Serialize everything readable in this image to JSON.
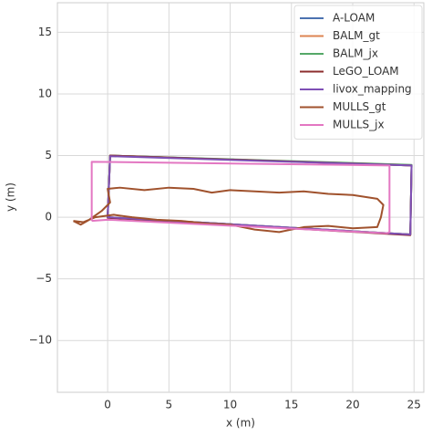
{
  "chart_data": {
    "type": "line",
    "xlabel": "x (m)",
    "ylabel": "y (m)",
    "xlim": [
      -4.1,
      25.8
    ],
    "ylim": [
      -14.2,
      17.4
    ],
    "xticks": [
      0,
      5,
      10,
      15,
      20,
      25
    ],
    "yticks": [
      {
        "value": -10,
        "label": "−10"
      },
      {
        "value": -5,
        "label": "−5"
      },
      0,
      5,
      10,
      15
    ],
    "grid": true,
    "legend": "upper right",
    "series": [
      {
        "name": "A-LOAM",
        "color": "#4c72b0",
        "x": [
          0,
          0.2,
          24.8,
          24.7,
          0,
          0.2
        ],
        "values": [
          0,
          5,
          4.2,
          -1.4,
          0,
          0.1
        ]
      },
      {
        "name": "BALM_gt",
        "color": "#dd8452",
        "x": [
          0,
          0.2,
          24.8,
          24.7,
          0,
          0.2
        ],
        "values": [
          0,
          5,
          4.2,
          -1.4,
          0,
          0.1
        ]
      },
      {
        "name": "BALM_jx",
        "color": "#55a868",
        "x": [
          0,
          0.2,
          24.8,
          24.7,
          0,
          0.2
        ],
        "values": [
          0.05,
          5,
          4.25,
          -1.4,
          0,
          0.1
        ]
      },
      {
        "name": "LeGO_LOAM",
        "color": "#8c2d2d",
        "x": [
          0,
          0.2,
          24.8,
          24.7,
          0,
          0.2
        ],
        "values": [
          0,
          5,
          4.2,
          -1.45,
          -0.05,
          0.1
        ]
      },
      {
        "name": "livox_mapping",
        "color": "#7e4fb5",
        "x": [
          0,
          0.2,
          24.8,
          24.7,
          0,
          0.2
        ],
        "values": [
          0,
          4.95,
          4.2,
          -1.4,
          0,
          0.1
        ]
      },
      {
        "name": "MULLS_gt",
        "color": "#a0522d",
        "x": [
          -2.8,
          -2.2,
          -1.5,
          -0.5,
          0.2,
          0,
          1,
          3,
          5,
          7,
          8,
          8.5,
          10,
          12,
          14,
          16,
          18,
          20,
          22,
          22.5,
          22.3,
          22,
          20,
          18,
          16,
          14,
          12,
          10,
          8,
          6,
          4,
          2,
          0.5,
          -1,
          -2,
          -2.8
        ],
        "values": [
          -0.3,
          -0.6,
          -0.2,
          0.5,
          1.2,
          2.3,
          2.4,
          2.2,
          2.4,
          2.3,
          2.1,
          2.0,
          2.2,
          2.1,
          2.0,
          2.1,
          1.9,
          1.8,
          1.5,
          1.0,
          0,
          -0.8,
          -0.9,
          -0.7,
          -0.8,
          -1.2,
          -1.0,
          -0.6,
          -0.5,
          -0.3,
          -0.2,
          0,
          0.2,
          0,
          -0.4,
          -0.3
        ]
      },
      {
        "name": "MULLS_jx",
        "color": "#e377c2",
        "x": [
          -1.3,
          -1.3,
          23,
          23,
          22.8,
          0,
          -1.3
        ],
        "values": [
          -0.3,
          4.5,
          4.2,
          -1.2,
          -1.3,
          -0.2,
          -0.3
        ]
      }
    ]
  }
}
